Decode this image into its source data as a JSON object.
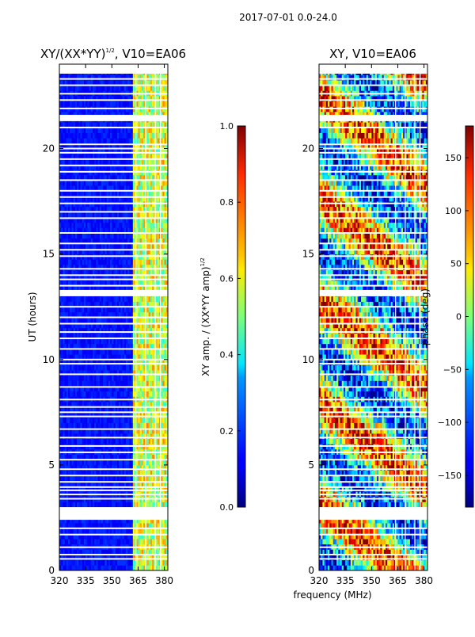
{
  "suptitle": "2017-07-01 0.0-24.0",
  "chart_data": [
    {
      "type": "heatmap",
      "title_main": "XY/(XX*YY)",
      "title_sup": "1/2",
      "title_tail": ", V10=EA06",
      "xlabel": "frequency (MHz)",
      "ylabel": "UT (hours)",
      "xlim": [
        320,
        382
      ],
      "ylim": [
        0,
        24
      ],
      "xticks": [
        "320",
        "335",
        "350",
        "365",
        "380"
      ],
      "xtick_values": [
        320,
        335,
        350,
        365,
        380
      ],
      "yticks": [
        "0",
        "5",
        "10",
        "15",
        "20"
      ],
      "ytick_values": [
        0,
        5,
        10,
        15,
        20
      ],
      "colorbar": {
        "label_main": "XY amp. / (XX*YY amp)",
        "label_sup": "1/2",
        "range": [
          0.0,
          1.0
        ],
        "ticks": [
          "0.0",
          "0.2",
          "0.4",
          "0.6",
          "0.8",
          "1.0"
        ],
        "tick_values": [
          0.0,
          0.2,
          0.4,
          0.6,
          0.8,
          1.0
        ],
        "colormap": "jet"
      },
      "description_values": {
        "low_band_level": 0.1,
        "high_band_start_mhz": 362,
        "high_band_level": 0.5
      }
    },
    {
      "type": "heatmap",
      "title_main": "XY, V10=EA06",
      "xlabel": "frequency (MHz)",
      "ylabel": "",
      "xlim": [
        320,
        382
      ],
      "ylim": [
        0,
        24
      ],
      "xticks": [
        "320",
        "335",
        "350",
        "365",
        "380"
      ],
      "xtick_values": [
        320,
        335,
        350,
        365,
        380
      ],
      "yticks": [
        "0",
        "5",
        "10",
        "15",
        "20"
      ],
      "ytick_values": [
        0,
        5,
        10,
        15,
        20
      ],
      "colorbar": {
        "label_main": "phase (deg)",
        "range": [
          -180,
          180
        ],
        "ticks": [
          "−150",
          "−100",
          "−50",
          "0",
          "50",
          "100",
          "150"
        ],
        "tick_values": [
          -150,
          -100,
          -50,
          0,
          50,
          100,
          150
        ],
        "colormap": "jet"
      }
    }
  ],
  "gap_hours": [
    [
      2.4,
      3.0
    ],
    [
      21.3,
      21.6
    ],
    [
      13.0,
      13.3
    ],
    [
      23.55,
      24.0
    ]
  ],
  "flag_hours": [
    0.55,
    0.75,
    1.1,
    1.7,
    2.0,
    3.4,
    3.6,
    3.8,
    3.95,
    4.2,
    4.5,
    4.8,
    5.25,
    5.6,
    5.9,
    6.3,
    6.7,
    7.3,
    7.5,
    7.75,
    8.1,
    8.7,
    9.3,
    9.8,
    10.0,
    10.5,
    11.0,
    11.3,
    11.7,
    12.0,
    12.5,
    13.5,
    13.8,
    14.0,
    14.3,
    14.9,
    15.2,
    15.5,
    16.0,
    16.7,
    17.0,
    17.4,
    17.7,
    18.0,
    18.5,
    18.9,
    19.2,
    19.5,
    19.8,
    20.0,
    20.2,
    21.0,
    21.9,
    22.3,
    22.6,
    23.0,
    23.3
  ],
  "column_flags_mhz": [
    363.5,
    369.0,
    374.5,
    377.5
  ]
}
